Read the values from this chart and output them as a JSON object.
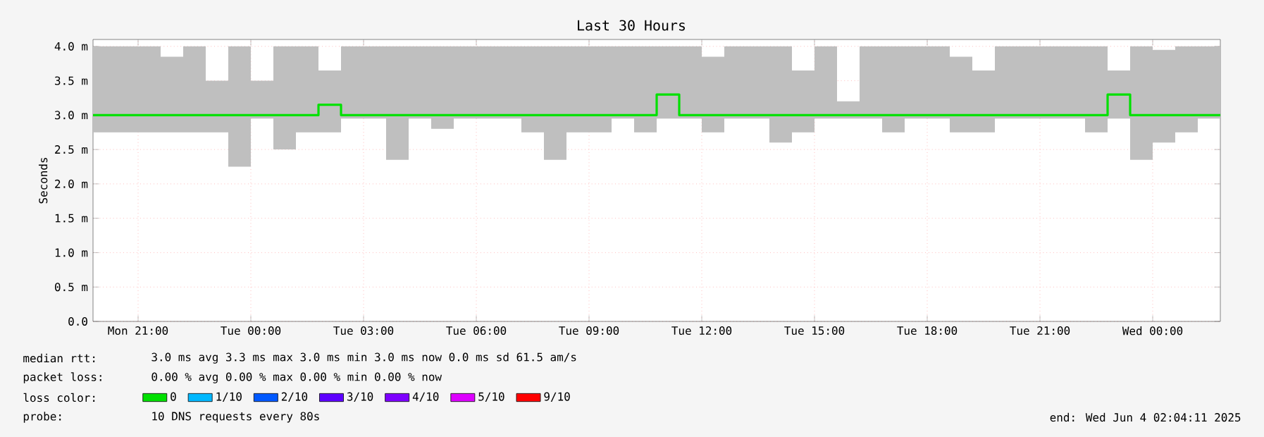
{
  "chart_data": {
    "type": "step",
    "title": "Last 30 Hours",
    "ylabel": "Seconds",
    "x": [
      "2025-06-02T19:48",
      "2025-06-02T20:24",
      "2025-06-02T21:00",
      "2025-06-02T21:36",
      "2025-06-02T22:12",
      "2025-06-02T22:48",
      "2025-06-02T23:24",
      "2025-06-03T00:00",
      "2025-06-03T00:36",
      "2025-06-03T01:12",
      "2025-06-03T01:48",
      "2025-06-03T02:24",
      "2025-06-03T03:00",
      "2025-06-03T03:36",
      "2025-06-03T04:12",
      "2025-06-03T04:48",
      "2025-06-03T05:24",
      "2025-06-03T06:00",
      "2025-06-03T06:36",
      "2025-06-03T07:12",
      "2025-06-03T07:48",
      "2025-06-03T08:24",
      "2025-06-03T09:00",
      "2025-06-03T09:36",
      "2025-06-03T10:12",
      "2025-06-03T10:48",
      "2025-06-03T11:24",
      "2025-06-03T12:00",
      "2025-06-03T12:36",
      "2025-06-03T13:12",
      "2025-06-03T13:48",
      "2025-06-03T14:24",
      "2025-06-03T15:00",
      "2025-06-03T15:36",
      "2025-06-03T16:12",
      "2025-06-03T16:48",
      "2025-06-03T17:24",
      "2025-06-03T18:00",
      "2025-06-03T18:36",
      "2025-06-03T19:12",
      "2025-06-03T19:48",
      "2025-06-03T20:24",
      "2025-06-03T21:00",
      "2025-06-03T21:36",
      "2025-06-03T22:12",
      "2025-06-03T22:48",
      "2025-06-03T23:24",
      "2025-06-04T00:00",
      "2025-06-04T00:36",
      "2025-06-04T01:12",
      "2025-06-04T01:48"
    ],
    "series": [
      {
        "name": "0",
        "color": "#00e000",
        "values": [
          3.0,
          3.0,
          3.0,
          3.0,
          3.0,
          3.0,
          3.0,
          3.0,
          3.0,
          3.0,
          3.15,
          3.0,
          3.0,
          3.0,
          3.0,
          3.0,
          3.0,
          3.0,
          3.0,
          3.0,
          3.0,
          3.0,
          3.0,
          3.0,
          3.0,
          3.3,
          3.0,
          3.0,
          3.0,
          3.0,
          3.0,
          3.0,
          3.0,
          3.0,
          3.0,
          3.0,
          3.0,
          3.0,
          3.0,
          3.0,
          3.0,
          3.0,
          3.0,
          3.0,
          3.0,
          3.3,
          3.0,
          3.0,
          3.0,
          3.0,
          3.0
        ],
        "lower": [
          2.75,
          2.75,
          2.75,
          2.75,
          2.75,
          2.75,
          2.25,
          2.95,
          2.5,
          2.75,
          2.75,
          2.95,
          2.95,
          2.35,
          2.95,
          2.8,
          2.95,
          2.95,
          2.95,
          2.75,
          2.35,
          2.75,
          2.75,
          2.95,
          2.75,
          2.95,
          2.95,
          2.75,
          2.95,
          2.95,
          2.6,
          2.75,
          2.95,
          2.95,
          2.95,
          2.75,
          2.95,
          2.95,
          2.75,
          2.75,
          2.95,
          2.95,
          2.95,
          2.95,
          2.75,
          2.95,
          2.35,
          2.6,
          2.75,
          2.95,
          2.95
        ],
        "upper": [
          4.0,
          4.0,
          4.0,
          3.85,
          4.0,
          3.5,
          4.0,
          3.5,
          4.0,
          4.0,
          3.65,
          4.0,
          4.0,
          4.0,
          4.0,
          4.0,
          4.0,
          4.0,
          4.0,
          4.0,
          4.0,
          4.0,
          4.0,
          4.0,
          4.0,
          4.0,
          4.0,
          3.85,
          4.0,
          4.0,
          4.0,
          3.65,
          4.0,
          3.2,
          4.0,
          4.0,
          4.0,
          4.0,
          3.85,
          3.65,
          4.0,
          4.0,
          4.0,
          4.0,
          4.0,
          3.65,
          4.0,
          3.95,
          4.0,
          4.0,
          4.0
        ]
      },
      {
        "name": "1/10",
        "color": "#00b8ff",
        "values": [
          null,
          null,
          null,
          null,
          null,
          null,
          null,
          null,
          null,
          null,
          null,
          null,
          null,
          null,
          null,
          null,
          null,
          null,
          null,
          null,
          null,
          null,
          null,
          null,
          null,
          null,
          null,
          null,
          null,
          null,
          null,
          null,
          null,
          null,
          null,
          null,
          null,
          null,
          null,
          null,
          null,
          null,
          null,
          null,
          null,
          null,
          null,
          null,
          null,
          null,
          null
        ]
      },
      {
        "name": "2/10",
        "color": "#0059ff",
        "values": [
          null,
          null,
          null,
          null,
          null,
          null,
          null,
          null,
          null,
          null,
          null,
          null,
          null,
          null,
          null,
          null,
          null,
          null,
          null,
          null,
          null,
          null,
          null,
          null,
          null,
          null,
          null,
          null,
          null,
          null,
          null,
          null,
          null,
          null,
          null,
          null,
          null,
          null,
          null,
          null,
          null,
          null,
          null,
          null,
          null,
          null,
          null,
          null,
          null,
          null,
          null
        ]
      },
      {
        "name": "3/10",
        "color": "#5e00ff",
        "values": [
          null,
          null,
          null,
          null,
          null,
          null,
          null,
          null,
          null,
          null,
          null,
          null,
          null,
          null,
          null,
          null,
          null,
          null,
          null,
          null,
          null,
          null,
          null,
          null,
          null,
          null,
          null,
          null,
          null,
          null,
          null,
          null,
          null,
          null,
          null,
          null,
          null,
          null,
          null,
          null,
          null,
          null,
          null,
          null,
          null,
          null,
          null,
          null,
          null,
          null,
          null
        ]
      },
      {
        "name": "4/10",
        "color": "#7e00ff",
        "values": [
          null,
          null,
          null,
          null,
          null,
          null,
          null,
          null,
          null,
          null,
          null,
          null,
          null,
          null,
          null,
          null,
          null,
          null,
          null,
          null,
          null,
          null,
          null,
          null,
          null,
          null,
          null,
          null,
          null,
          null,
          null,
          null,
          null,
          null,
          null,
          null,
          null,
          null,
          null,
          null,
          null,
          null,
          null,
          null,
          null,
          null,
          null,
          null,
          null,
          null,
          null
        ]
      },
      {
        "name": "5/10",
        "color": "#dd00ff",
        "values": [
          null,
          null,
          null,
          null,
          null,
          null,
          null,
          null,
          null,
          null,
          null,
          null,
          null,
          null,
          null,
          null,
          null,
          null,
          null,
          null,
          null,
          null,
          null,
          null,
          null,
          null,
          null,
          null,
          null,
          null,
          null,
          null,
          null,
          null,
          null,
          null,
          null,
          null,
          null,
          null,
          null,
          null,
          null,
          null,
          null,
          null,
          null,
          null,
          null,
          null,
          null
        ]
      },
      {
        "name": "9/10",
        "color": "#ff0000",
        "values": [
          null,
          null,
          null,
          null,
          null,
          null,
          null,
          null,
          null,
          null,
          null,
          null,
          null,
          null,
          null,
          null,
          null,
          null,
          null,
          null,
          null,
          null,
          null,
          null,
          null,
          null,
          null,
          null,
          null,
          null,
          null,
          null,
          null,
          null,
          null,
          null,
          null,
          null,
          null,
          null,
          null,
          null,
          null,
          null,
          null,
          null,
          null,
          null,
          null,
          null,
          null
        ]
      }
    ],
    "xlim": [
      "2025-06-02T19:48",
      "2025-06-04T01:48"
    ],
    "xticks": [
      {
        "value": "2025-06-02T21:00",
        "label": "Mon 21:00"
      },
      {
        "value": "2025-06-03T00:00",
        "label": "Tue 00:00"
      },
      {
        "value": "2025-06-03T03:00",
        "label": "Tue 03:00"
      },
      {
        "value": "2025-06-03T06:00",
        "label": "Tue 06:00"
      },
      {
        "value": "2025-06-03T09:00",
        "label": "Tue 09:00"
      },
      {
        "value": "2025-06-03T12:00",
        "label": "Tue 12:00"
      },
      {
        "value": "2025-06-03T15:00",
        "label": "Tue 15:00"
      },
      {
        "value": "2025-06-03T18:00",
        "label": "Tue 18:00"
      },
      {
        "value": "2025-06-03T21:00",
        "label": "Tue 21:00"
      },
      {
        "value": "2025-06-04T00:00",
        "label": "Wed 00:00"
      }
    ],
    "ylim": [
      0,
      4.1
    ],
    "yticks": [
      {
        "value": 0,
        "label": "0.0"
      },
      {
        "value": 0.5,
        "label": "0.5 m"
      },
      {
        "value": 1.0,
        "label": "1.0 m"
      },
      {
        "value": 1.5,
        "label": "1.5 m"
      },
      {
        "value": 2.0,
        "label": "2.0 m"
      },
      {
        "value": 2.5,
        "label": "2.5 m"
      },
      {
        "value": 3.0,
        "label": "3.0 m"
      },
      {
        "value": 3.5,
        "label": "3.5 m"
      },
      {
        "value": 4.0,
        "label": "4.0 m"
      }
    ],
    "grid": true,
    "legend": "bottom",
    "marker": "none",
    "line_style": "solid",
    "annotations": [
      "median rtt:",
      "3.0 ms avg  3.3 ms max  3.0 ms min  3.0 ms now  0.0 ms sd  61.5   am/s",
      "packet loss:",
      "0.00 % avg  0.00 % max  0.00 % min  0.00 % now",
      "loss color:",
      "probe:",
      "10 DNS requests every 80s",
      "end: Wed Jun  4 02:04:11 2025"
    ]
  }
}
